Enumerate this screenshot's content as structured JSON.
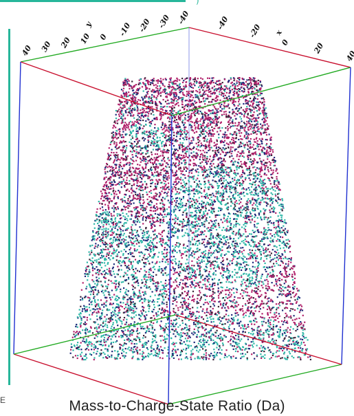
{
  "viewer": {
    "bottom_label": "Mass-to-Charge-State Ratio (Da)",
    "top_hint": ")",
    "corner_mark": "E"
  },
  "axes": {
    "y_axis_title": "y",
    "x_axis_title": "x",
    "y_ticks": [
      "40",
      "30",
      "20",
      "10",
      "0",
      "-10",
      "-20",
      "-30",
      "-40"
    ],
    "x_ticks": [
      "-40",
      "-20",
      "0",
      "20",
      "40"
    ]
  },
  "colors": {
    "accent": "#27b69a",
    "bbox_red": "#c8102e",
    "bbox_green": "#22aa22",
    "bbox_blue": "#1f2fd0",
    "point_magenta": "#b0206a",
    "point_teal": "#2fb7a8",
    "point_navy": "#1e2a7a",
    "point_dark": "#3a2438"
  }
}
